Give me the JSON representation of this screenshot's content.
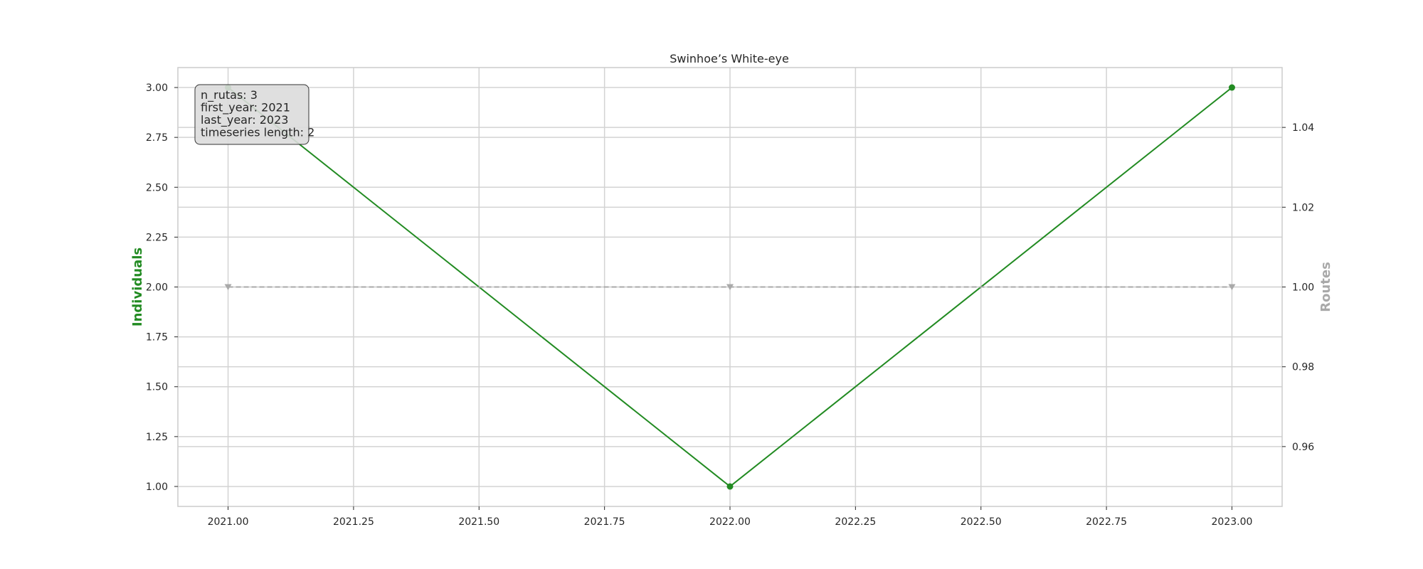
{
  "chart_data": {
    "type": "line",
    "title": "Swinhoe’s White-eye",
    "xlabel": "",
    "ylabel": "Individuals",
    "y2label": "Routes",
    "xlim": [
      2020.9,
      2023.1
    ],
    "ylim": [
      0.9,
      3.1
    ],
    "y2lim": [
      0.945,
      1.055
    ],
    "x_ticks": [
      2021.0,
      2021.25,
      2021.5,
      2021.75,
      2022.0,
      2022.25,
      2022.5,
      2022.75,
      2023.0
    ],
    "x_tick_labels": [
      "2021.00",
      "2021.25",
      "2021.50",
      "2021.75",
      "2022.00",
      "2022.25",
      "2022.50",
      "2022.75",
      "2023.00"
    ],
    "y_ticks": [
      1.0,
      1.25,
      1.5,
      1.75,
      2.0,
      2.25,
      2.5,
      2.75,
      3.0
    ],
    "y_tick_labels": [
      "1.00",
      "1.25",
      "1.50",
      "1.75",
      "2.00",
      "2.25",
      "2.50",
      "2.75",
      "3.00"
    ],
    "y2_ticks": [
      0.96,
      0.98,
      1.0,
      1.02,
      1.04
    ],
    "y2_tick_labels": [
      "0.96",
      "0.98",
      "1.00",
      "1.02",
      "1.04"
    ],
    "grid": true,
    "series": [
      {
        "axis": "left",
        "x": [
          2021,
          2022,
          2023
        ],
        "values": [
          3,
          1,
          3
        ],
        "color": "#228b22",
        "marker": "circle",
        "linestyle": "solid"
      },
      {
        "axis": "right",
        "x": [
          2021,
          2022,
          2023
        ],
        "values": [
          1,
          1,
          1
        ],
        "color": "#a9a9a9",
        "marker": "triangle-down",
        "linestyle": "dashed"
      }
    ],
    "annotation": {
      "placement": "top-left",
      "lines": [
        "n_rutas: 3",
        "first_year: 2021",
        "last_year: 2023",
        "timeseries length: 2"
      ]
    },
    "colors": {
      "left_axis": "#228b22",
      "right_axis": "#a9a9a9",
      "grid": "#d3d3d3",
      "box_fill": "#dcdcdc"
    }
  }
}
